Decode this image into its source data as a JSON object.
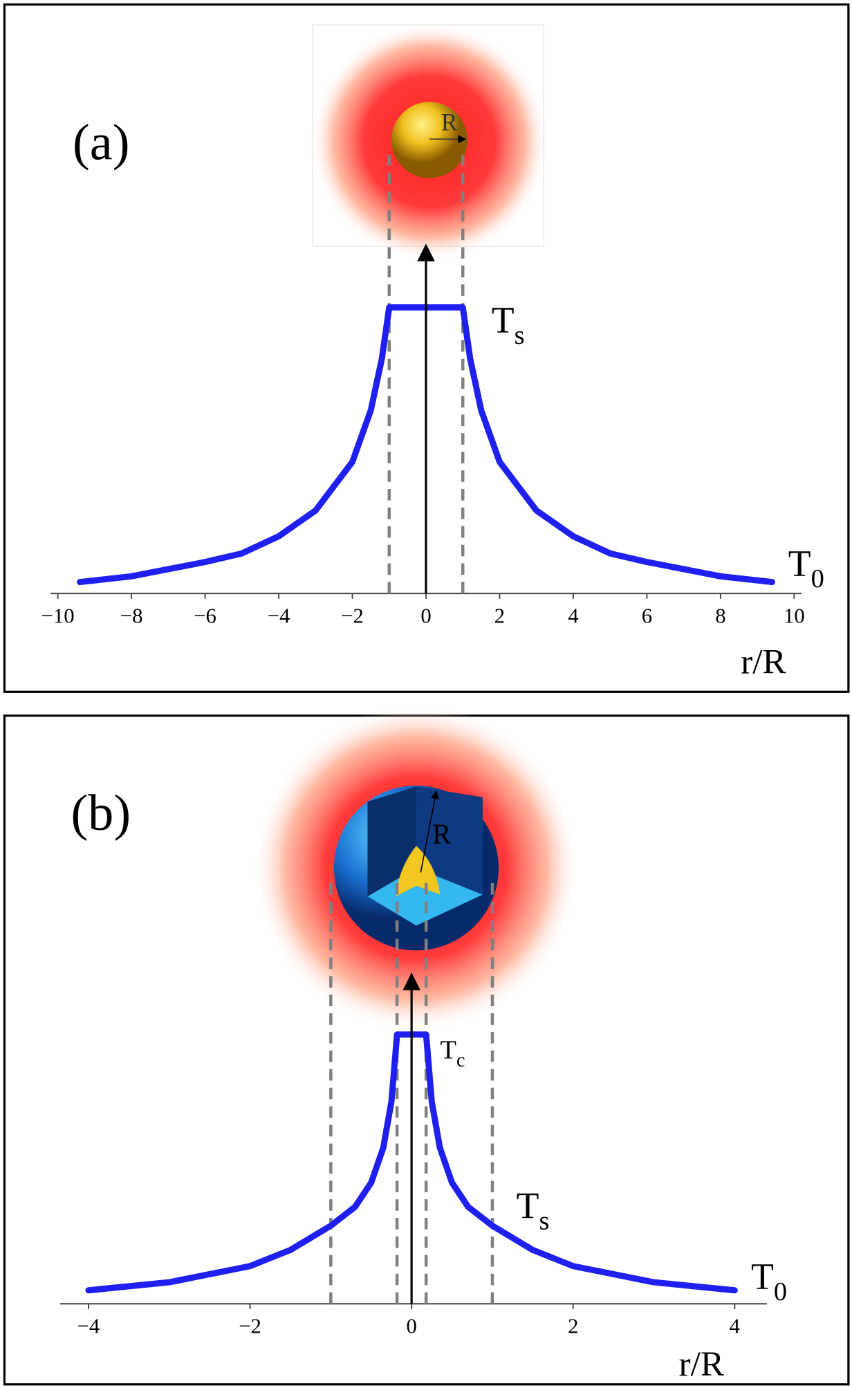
{
  "chart_data": [
    {
      "type": "line",
      "panel_label": "(a)",
      "sphere_label": "R",
      "x_label": "r/R",
      "annotations": [
        {
          "text": "T",
          "subscript": "s"
        },
        {
          "text": "T",
          "subscript": "0"
        }
      ],
      "x": [
        -9.4,
        -8,
        -6,
        -5,
        -4,
        -3,
        -2,
        -1.5,
        -1.2,
        -1,
        0,
        1,
        1.2,
        1.5,
        2,
        3,
        4,
        5,
        6,
        8,
        9.4
      ],
      "values": [
        0.04,
        0.06,
        0.11,
        0.14,
        0.2,
        0.29,
        0.46,
        0.64,
        0.82,
        1,
        1,
        1,
        0.82,
        0.64,
        0.46,
        0.29,
        0.2,
        0.14,
        0.11,
        0.06,
        0.04
      ],
      "color": "#1f1fef",
      "guide_color": "#808080",
      "guides": [
        -1,
        1
      ],
      "xlim": [
        -10.2,
        10.2
      ],
      "ylim": [
        0,
        1
      ],
      "xticks": [
        {
          "value": -10,
          "label": "−10"
        },
        {
          "value": -8,
          "label": "−8"
        },
        {
          "value": -6,
          "label": "−6"
        },
        {
          "value": -4,
          "label": "−4"
        },
        {
          "value": -2,
          "label": "−2"
        },
        0,
        2,
        4,
        6,
        8,
        10
      ]
    },
    {
      "type": "line",
      "panel_label": "(b)",
      "sphere_label": "R",
      "x_label": "r/R",
      "annotations": [
        {
          "text": "T",
          "subscript": "c"
        },
        {
          "text": "T",
          "subscript": "s"
        },
        {
          "text": "T",
          "subscript": "0"
        }
      ],
      "x": [
        -4,
        -3,
        -2,
        -1.5,
        -1,
        -0.7,
        -0.5,
        -0.35,
        -0.25,
        -0.18,
        0,
        0.18,
        0.25,
        0.35,
        0.5,
        0.7,
        1,
        1.5,
        2,
        3,
        4
      ],
      "values": [
        0.05,
        0.08,
        0.14,
        0.2,
        0.29,
        0.36,
        0.45,
        0.58,
        0.75,
        1,
        1,
        1,
        0.75,
        0.58,
        0.45,
        0.36,
        0.29,
        0.2,
        0.14,
        0.08,
        0.05
      ],
      "color": "#1f1fef",
      "guide_color": "#808080",
      "guides": [
        -1,
        -0.18,
        0.18,
        1
      ],
      "xlim": [
        -4.35,
        4.4
      ],
      "ylim": [
        0,
        1
      ],
      "xticks": [
        {
          "value": -4,
          "label": "−4"
        },
        {
          "value": -2,
          "label": "−2"
        },
        0,
        2,
        4
      ]
    }
  ]
}
